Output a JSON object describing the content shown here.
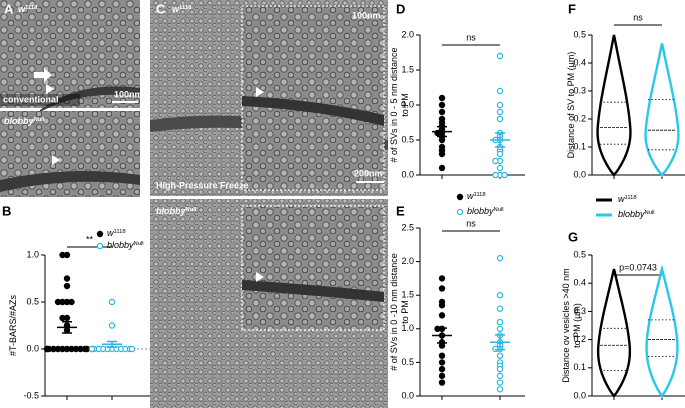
{
  "figure": {
    "panel_A": {
      "letter": "A",
      "genotype": {
        "base": "w",
        "sup": "1118"
      },
      "method": "conventional",
      "scale": "100nm",
      "genotype2": {
        "base": "blobby",
        "sup": "Null"
      }
    },
    "panel_C": {
      "letter": "C",
      "genotype": {
        "base": "w",
        "sup": "1118"
      },
      "inset_scale": "100nm",
      "method": "High-Pressure Freeze",
      "scale": "200nm",
      "genotype2": {
        "base": "blobby",
        "sup": "Null"
      }
    }
  },
  "chart_data": [
    {
      "type": "dot_scatter",
      "letter": "B",
      "y_label": [
        "#T-BARS/#AZs"
      ],
      "ylim": [
        -0.5,
        1.0
      ],
      "yticks": [
        -0.5,
        {
          "value": 0,
          "label": "0.0"
        },
        0.5,
        {
          "value": 1,
          "label": "1.0"
        }
      ],
      "significance": "**",
      "legend_position": "upper right",
      "series": [
        {
          "name": {
            "base": "w",
            "sup": "1118"
          },
          "color": "#000000",
          "marker": "filled",
          "values": [
            1,
            1,
            0.75,
            0.67,
            0.5,
            0.5,
            0.5,
            0.5,
            0.33,
            0.33,
            0.25,
            0.2,
            0,
            0,
            0,
            0,
            0,
            0,
            0,
            0,
            0,
            0,
            0,
            0
          ],
          "mean": 0.23,
          "sem": 0.06
        },
        {
          "name": {
            "base": "blobby",
            "sup": "Null"
          },
          "color": "#29b6e0",
          "marker": "open",
          "values": [
            0.5,
            0.25,
            0,
            0,
            0,
            0,
            0,
            0,
            0,
            0,
            0,
            0,
            0,
            0
          ],
          "mean": 0.05,
          "sem": 0.03
        }
      ]
    },
    {
      "type": "dot_scatter",
      "letter": "D",
      "y_label": [
        "# of SVs in 0 - 5 nm distance",
        "to PM"
      ],
      "ylim": [
        0,
        2
      ],
      "yticks": [
        {
          "value": 0,
          "label": "0.0"
        },
        0.5,
        {
          "value": 1,
          "label": "1.0"
        },
        1.5,
        {
          "value": 2,
          "label": "2.0"
        }
      ],
      "significance": "ns",
      "legend_position": "bottom",
      "series": [
        {
          "name": {
            "base": "w",
            "sup": "1118"
          },
          "color": "#000000",
          "marker": "filled",
          "values": [
            1.1,
            1.0,
            0.9,
            0.8,
            0.75,
            0.7,
            0.65,
            0.6,
            0.6,
            0.55,
            0.5,
            0.4,
            0.35,
            0.3,
            0.1
          ],
          "mean": 0.62,
          "sem": 0.07
        },
        {
          "name": {
            "base": "blobby",
            "sup": "Null"
          },
          "color": "#29b6e0",
          "marker": "open",
          "values": [
            1.7,
            1.2,
            1.0,
            0.9,
            0.8,
            0.6,
            0.55,
            0.5,
            0.5,
            0.35,
            0.3,
            0.2,
            0.1,
            0,
            0,
            0,
            0.4,
            0.2
          ],
          "mean": 0.5,
          "sem": 0.1
        }
      ]
    },
    {
      "type": "dot_scatter",
      "letter": "E",
      "y_label": [
        "# of SVs in 0 -10 nm distance",
        "to PM"
      ],
      "ylim": [
        0,
        2.5
      ],
      "yticks": [
        {
          "value": 0,
          "label": "0.0"
        },
        0.5,
        {
          "value": 1,
          "label": "1.0"
        },
        1.5,
        {
          "value": 2,
          "label": "2.0"
        },
        2.5
      ],
      "significance": "ns",
      "series": [
        {
          "name": {
            "base": "w",
            "sup": "1118"
          },
          "color": "#000000",
          "marker": "filled",
          "values": [
            1.75,
            1.6,
            1.4,
            1.35,
            1.2,
            1.0,
            1.0,
            0.9,
            0.8,
            0.75,
            0.6,
            0.5,
            0.4,
            0.3,
            0.2
          ],
          "mean": 0.9,
          "sem": 0.11
        },
        {
          "name": {
            "base": "blobby",
            "sup": "Null"
          },
          "color": "#29b6e0",
          "marker": "open",
          "values": [
            2.05,
            1.5,
            1.3,
            1.1,
            1.0,
            0.9,
            0.8,
            0.75,
            0.7,
            0.7,
            0.6,
            0.5,
            0.45,
            0.4,
            0.3,
            0.2,
            0.1
          ],
          "mean": 0.8,
          "sem": 0.11
        }
      ]
    },
    {
      "type": "violin",
      "letter": "F",
      "y_label": [
        "Distance of SV to PM (µm)"
      ],
      "ylim": [
        0,
        0.5
      ],
      "yticks": [
        {
          "value": 0,
          "label": "0.0"
        },
        0.1,
        0.2,
        0.3,
        0.4,
        0.5
      ],
      "significance": "ns",
      "legend_position": "bottom",
      "series": [
        {
          "name": {
            "base": "w",
            "sup": "1118"
          },
          "color": "#000000",
          "min": 0,
          "q1": 0.11,
          "median": 0.17,
          "q3": 0.26,
          "max": 0.5
        },
        {
          "name": {
            "base": "blobby",
            "sup": "Null"
          },
          "color": "#29c8ea",
          "min": 0,
          "q1": 0.09,
          "median": 0.16,
          "q3": 0.27,
          "max": 0.47
        }
      ]
    },
    {
      "type": "violin",
      "letter": "G",
      "y_label": [
        "Distance ov vesicles >40 nm",
        "to PM (µm)"
      ],
      "ylim": [
        0,
        0.5
      ],
      "yticks": [
        {
          "value": 0,
          "label": "0.0"
        },
        0.1,
        0.2,
        0.3,
        0.4,
        0.5
      ],
      "significance": "p=0.0743",
      "series": [
        {
          "name": {
            "base": "w",
            "sup": "1118"
          },
          "color": "#000000",
          "min": 0,
          "q1": 0.09,
          "median": 0.18,
          "q3": 0.24,
          "max": 0.45
        },
        {
          "name": {
            "base": "blobby",
            "sup": "Null"
          },
          "color": "#29c8ea",
          "min": 0,
          "q1": 0.14,
          "median": 0.2,
          "q3": 0.27,
          "max": 0.45
        }
      ]
    }
  ]
}
